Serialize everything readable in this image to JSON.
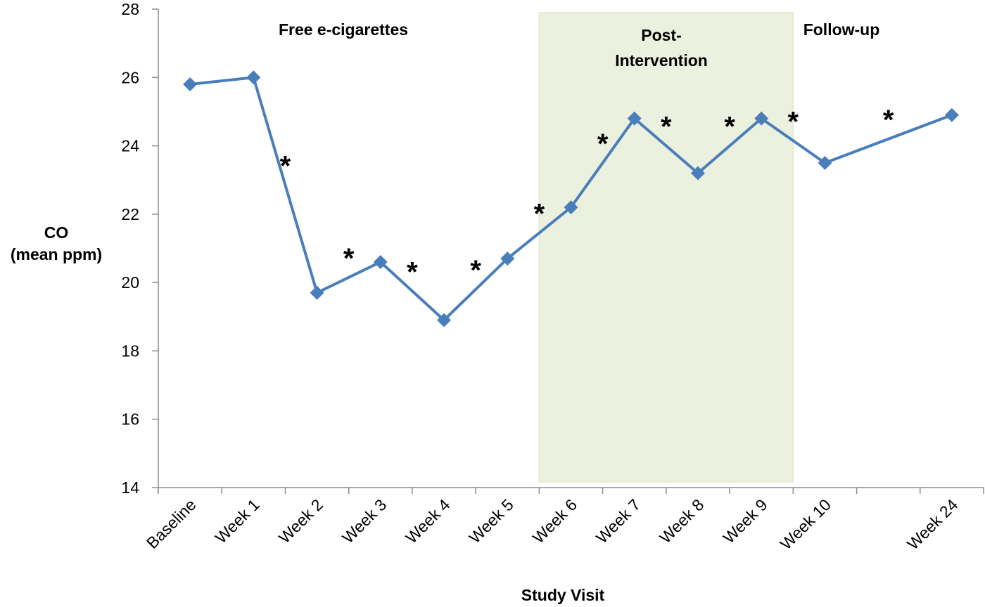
{
  "chart_data": {
    "type": "line",
    "xlabel": "Study Visit",
    "ylabel_lines": [
      "CO",
      "(mean ppm)"
    ],
    "ylim": [
      14,
      28
    ],
    "yticks": [
      14,
      16,
      18,
      20,
      22,
      24,
      26,
      28
    ],
    "categories": [
      "Baseline",
      "Week 1",
      "Week 2",
      "Week 3",
      "Week 4",
      "Week 5",
      "Week 6",
      "Week 7",
      "Week 8",
      "Week 9",
      "Week 10",
      "",
      "Week 24"
    ],
    "series": [
      {
        "color": "#4a7ebb",
        "marker": "diamond",
        "points": [
          {
            "x": "Baseline",
            "y": 25.8
          },
          {
            "x": "Week 1",
            "y": 26.0
          },
          {
            "x": "Week 2",
            "y": 19.7
          },
          {
            "x": "Week 3",
            "y": 20.6
          },
          {
            "x": "Week 4",
            "y": 18.9
          },
          {
            "x": "Week 5",
            "y": 20.7
          },
          {
            "x": "Week 6",
            "y": 22.2
          },
          {
            "x": "Week 7",
            "y": 24.8
          },
          {
            "x": "Week 8",
            "y": 23.2
          },
          {
            "x": "Week 9",
            "y": 24.8
          },
          {
            "x": "Week 10",
            "y": 23.5
          },
          {
            "x": "Week 24",
            "y": 24.9
          }
        ]
      }
    ],
    "significance_markers": [
      {
        "symbol": "*",
        "between": [
          "Week 1",
          "Week 2"
        ]
      },
      {
        "symbol": "*",
        "between": [
          "Week 2",
          "Week 3"
        ]
      },
      {
        "symbol": "*",
        "between": [
          "Week 3",
          "Week 4"
        ]
      },
      {
        "symbol": "*",
        "between": [
          "Week 4",
          "Week 5"
        ]
      },
      {
        "symbol": "*",
        "between": [
          "Week 5",
          "Week 6"
        ]
      },
      {
        "symbol": "*",
        "between": [
          "Week 6",
          "Week 7"
        ]
      },
      {
        "symbol": "*",
        "between": [
          "Week 7",
          "Week 8"
        ]
      },
      {
        "symbol": "*",
        "between": [
          "Week 8",
          "Week 9"
        ]
      },
      {
        "symbol": "*",
        "between": [
          "Week 9",
          "Week 10"
        ]
      },
      {
        "symbol": "*",
        "between": [
          "Week 10",
          "Week 24"
        ]
      }
    ],
    "regions": [
      {
        "label_lines": [
          "Free e-cigarettes"
        ]
      },
      {
        "label_lines": [
          "Post-",
          "Intervention"
        ],
        "shaded": true,
        "fill": "#ebf1de",
        "from": "Week 6",
        "to": "Week 9"
      },
      {
        "label_lines": [
          "Follow-up"
        ]
      }
    ],
    "grid": false,
    "legend": "none"
  }
}
